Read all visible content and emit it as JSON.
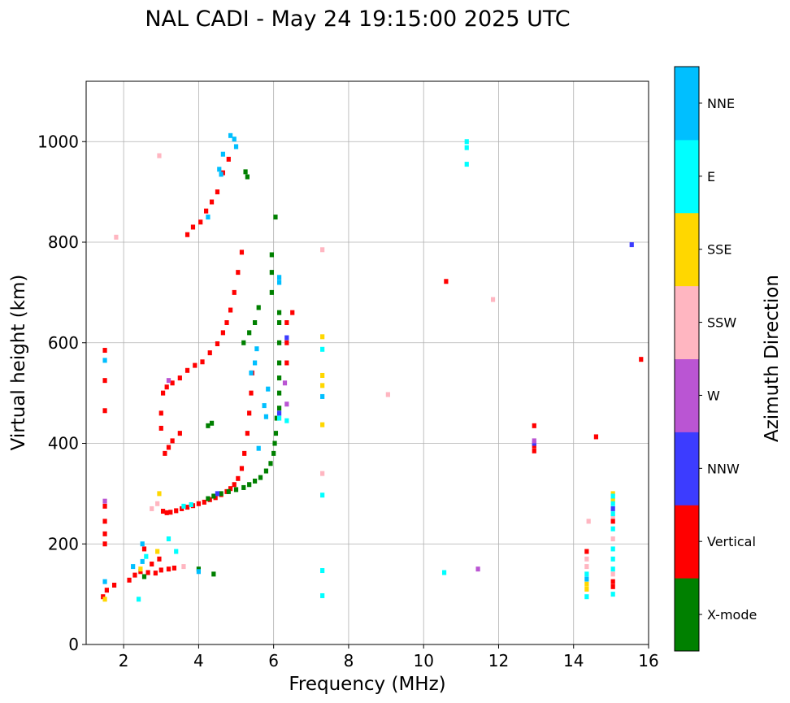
{
  "chart_data": {
    "type": "scatter",
    "title": "NAL CADI - May 24 19:15:00 2025 UTC",
    "xlabel": "Frequency (MHz)",
    "ylabel": "Virtual height (km)",
    "xlim": [
      1,
      16
    ],
    "ylim": [
      0,
      1120
    ],
    "xticks": [
      2,
      4,
      6,
      8,
      10,
      12,
      14,
      16
    ],
    "yticks": [
      0,
      200,
      400,
      600,
      800,
      1000
    ],
    "grid": true,
    "colorbar": {
      "label": "Azimuth Direction",
      "categories": [
        {
          "name": "X-mode",
          "color": "#008000"
        },
        {
          "name": "Vertical",
          "color": "#ff0000"
        },
        {
          "name": "NNW",
          "color": "#3c3cff"
        },
        {
          "name": "W",
          "color": "#ba55d3"
        },
        {
          "name": "SSW",
          "color": "#ffb6c1"
        },
        {
          "name": "SSE",
          "color": "#ffd700"
        },
        {
          "name": "E",
          "color": "#00ffff"
        },
        {
          "name": "NNE",
          "color": "#00bfff"
        }
      ]
    },
    "series": [
      {
        "name": "Vertical",
        "color": "#ff0000",
        "points": [
          [
            3.05,
            265
          ],
          [
            3.15,
            262
          ],
          [
            3.25,
            263
          ],
          [
            3.4,
            266
          ],
          [
            3.55,
            270
          ],
          [
            3.7,
            273
          ],
          [
            3.85,
            276
          ],
          [
            4.0,
            280
          ],
          [
            4.15,
            283
          ],
          [
            4.3,
            288
          ],
          [
            4.45,
            292
          ],
          [
            4.6,
            298
          ],
          [
            4.75,
            304
          ],
          [
            4.85,
            310
          ],
          [
            4.95,
            318
          ],
          [
            5.05,
            330
          ],
          [
            5.15,
            350
          ],
          [
            5.22,
            380
          ],
          [
            5.3,
            420
          ],
          [
            5.35,
            460
          ],
          [
            5.4,
            500
          ],
          [
            5.43,
            540
          ],
          [
            3.1,
            380
          ],
          [
            3.2,
            392
          ],
          [
            3.3,
            405
          ],
          [
            3.5,
            420
          ],
          [
            3.05,
            500
          ],
          [
            3.15,
            512
          ],
          [
            3.3,
            520
          ],
          [
            3.5,
            530
          ],
          [
            3.7,
            545
          ],
          [
            3.9,
            555
          ],
          [
            4.1,
            562
          ],
          [
            4.3,
            580
          ],
          [
            4.5,
            598
          ],
          [
            4.65,
            620
          ],
          [
            4.75,
            640
          ],
          [
            4.85,
            665
          ],
          [
            4.95,
            700
          ],
          [
            5.05,
            740
          ],
          [
            5.15,
            780
          ],
          [
            3.7,
            815
          ],
          [
            3.85,
            830
          ],
          [
            4.05,
            840
          ],
          [
            4.2,
            862
          ],
          [
            4.35,
            880
          ],
          [
            4.5,
            900
          ],
          [
            4.65,
            938
          ],
          [
            4.8,
            965
          ],
          [
            1.45,
            95
          ],
          [
            1.55,
            108
          ],
          [
            1.75,
            118
          ],
          [
            2.15,
            128
          ],
          [
            2.3,
            138
          ],
          [
            2.45,
            145
          ],
          [
            2.65,
            143
          ],
          [
            2.85,
            142
          ],
          [
            3.0,
            148
          ],
          [
            3.2,
            150
          ],
          [
            3.35,
            152
          ],
          [
            2.55,
            190
          ],
          [
            2.75,
            160
          ],
          [
            2.95,
            170
          ],
          [
            1.5,
            200
          ],
          [
            1.5,
            220
          ],
          [
            1.5,
            245
          ],
          [
            1.5,
            275
          ],
          [
            1.5,
            465
          ],
          [
            1.5,
            525
          ],
          [
            1.5,
            585
          ],
          [
            12.95,
            385
          ],
          [
            12.95,
            395
          ],
          [
            12.95,
            435
          ],
          [
            10.6,
            722
          ],
          [
            14.6,
            413
          ],
          [
            15.8,
            567
          ],
          [
            6.5,
            660
          ],
          [
            6.35,
            600
          ],
          [
            6.35,
            640
          ],
          [
            6.35,
            560
          ],
          [
            14.35,
            185
          ],
          [
            15.05,
            115
          ],
          [
            15.05,
            125
          ],
          [
            15.05,
            245
          ],
          [
            3.0,
            430
          ],
          [
            3.0,
            460
          ]
        ]
      },
      {
        "name": "X-mode",
        "color": "#008000",
        "points": [
          [
            4.25,
            290
          ],
          [
            4.4,
            295
          ],
          [
            4.6,
            300
          ],
          [
            4.8,
            304
          ],
          [
            5.0,
            308
          ],
          [
            5.2,
            312
          ],
          [
            5.35,
            318
          ],
          [
            5.5,
            325
          ],
          [
            5.65,
            332
          ],
          [
            5.8,
            345
          ],
          [
            5.92,
            360
          ],
          [
            6.0,
            380
          ],
          [
            6.03,
            400
          ],
          [
            6.06,
            420
          ],
          [
            6.08,
            450
          ],
          [
            6.15,
            470
          ],
          [
            6.15,
            500
          ],
          [
            6.15,
            530
          ],
          [
            6.15,
            560
          ],
          [
            6.15,
            600
          ],
          [
            6.15,
            640
          ],
          [
            6.15,
            660
          ],
          [
            5.95,
            700
          ],
          [
            5.95,
            740
          ],
          [
            5.95,
            775
          ],
          [
            6.05,
            850
          ],
          [
            4.25,
            435
          ],
          [
            4.35,
            440
          ],
          [
            5.2,
            600
          ],
          [
            5.35,
            620
          ],
          [
            5.5,
            640
          ],
          [
            5.6,
            670
          ],
          [
            5.3,
            930
          ],
          [
            5.25,
            940
          ],
          [
            4.4,
            140
          ],
          [
            4.0,
            150
          ],
          [
            2.55,
            135
          ]
        ]
      },
      {
        "name": "NNW",
        "color": "#3c3cff",
        "points": [
          [
            15.55,
            795
          ],
          [
            6.15,
            460
          ],
          [
            12.95,
            400
          ],
          [
            6.35,
            610
          ],
          [
            15.05,
            270
          ],
          [
            4.5,
            300
          ]
        ]
      },
      {
        "name": "W",
        "color": "#ba55d3",
        "points": [
          [
            11.45,
            150
          ],
          [
            6.35,
            478
          ],
          [
            6.3,
            520
          ],
          [
            12.95,
            405
          ],
          [
            1.5,
            285
          ],
          [
            3.2,
            525
          ]
        ]
      },
      {
        "name": "SSW",
        "color": "#ffb6c1",
        "points": [
          [
            9.05,
            497
          ],
          [
            11.85,
            686
          ],
          [
            7.3,
            785
          ],
          [
            7.3,
            340
          ],
          [
            14.4,
            245
          ],
          [
            2.95,
            972
          ],
          [
            1.8,
            810
          ],
          [
            14.35,
            170
          ],
          [
            14.35,
            155
          ],
          [
            15.05,
            210
          ],
          [
            15.05,
            140
          ],
          [
            15.05,
            255
          ],
          [
            3.6,
            155
          ],
          [
            2.9,
            280
          ],
          [
            2.75,
            270
          ]
        ]
      },
      {
        "name": "SSE",
        "color": "#ffd700",
        "points": [
          [
            7.3,
            612
          ],
          [
            7.3,
            535
          ],
          [
            7.3,
            515
          ],
          [
            7.3,
            437
          ],
          [
            14.35,
            110
          ],
          [
            14.35,
            120
          ],
          [
            15.05,
            300
          ],
          [
            15.05,
            287
          ],
          [
            2.95,
            300
          ],
          [
            2.9,
            185
          ],
          [
            2.45,
            150
          ],
          [
            1.5,
            90
          ]
        ]
      },
      {
        "name": "E",
        "color": "#00ffff",
        "points": [
          [
            11.15,
            1000
          ],
          [
            11.15,
            988
          ],
          [
            11.15,
            955
          ],
          [
            7.3,
            587
          ],
          [
            7.3,
            297
          ],
          [
            7.3,
            147
          ],
          [
            7.3,
            97
          ],
          [
            10.55,
            143
          ],
          [
            14.35,
            95
          ],
          [
            14.35,
            140
          ],
          [
            15.05,
            100
          ],
          [
            15.05,
            150
          ],
          [
            15.05,
            170
          ],
          [
            15.05,
            190
          ],
          [
            15.05,
            230
          ],
          [
            15.05,
            260
          ],
          [
            15.05,
            280
          ],
          [
            15.05,
            295
          ],
          [
            6.15,
            450
          ],
          [
            6.35,
            445
          ],
          [
            3.6,
            275
          ],
          [
            3.8,
            278
          ],
          [
            3.2,
            210
          ],
          [
            3.4,
            185
          ],
          [
            2.6,
            175
          ],
          [
            2.4,
            90
          ]
        ]
      },
      {
        "name": "NNE",
        "color": "#00bfff",
        "points": [
          [
            7.3,
            493
          ],
          [
            6.15,
            730
          ],
          [
            6.15,
            720
          ],
          [
            5.0,
            990
          ],
          [
            4.95,
            1005
          ],
          [
            4.85,
            1012
          ],
          [
            4.65,
            975
          ],
          [
            4.55,
            945
          ],
          [
            4.6,
            935
          ],
          [
            4.25,
            850
          ],
          [
            5.55,
            588
          ],
          [
            5.5,
            560
          ],
          [
            5.4,
            540
          ],
          [
            5.6,
            390
          ],
          [
            5.75,
            475
          ],
          [
            5.8,
            453
          ],
          [
            5.85,
            508
          ],
          [
            14.35,
            130
          ],
          [
            4.0,
            145
          ],
          [
            2.5,
            200
          ],
          [
            2.5,
            165
          ],
          [
            2.25,
            155
          ],
          [
            1.5,
            125
          ],
          [
            1.5,
            565
          ]
        ]
      }
    ]
  }
}
